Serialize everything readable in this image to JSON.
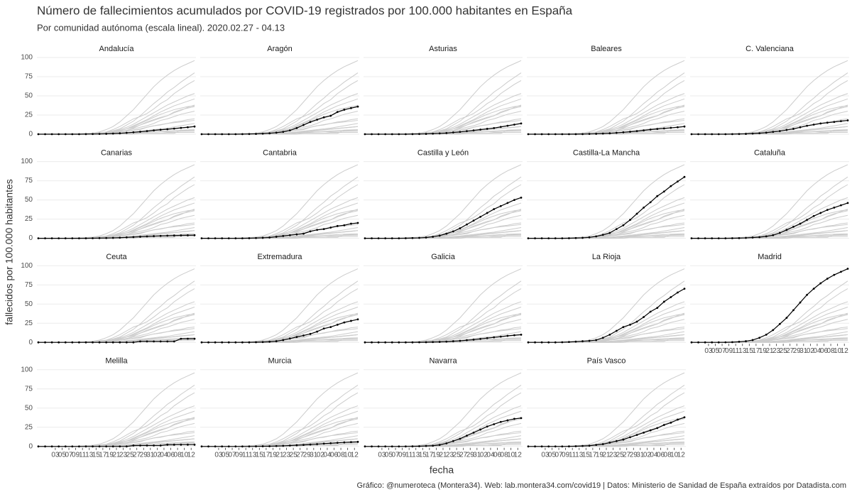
{
  "chart_data": {
    "type": "line",
    "title": "Número de fallecimientos acumulados por COVID-19 registrados por 100.000 habitantes en España",
    "subtitle": "Por comunidad autónoma (escala lineal). 2020.02.27 - 04.13",
    "xlabel": "fecha",
    "ylabel": "fallecidos por 100.000 habitantes",
    "caption": "Gráfico: @numeroteca (Montera34). Web: lab.montera34.com/covid19 | Datos: Ministerio de Sanidad de España extraídos por Datadista.com",
    "grid": true,
    "highlight_color": "#000000",
    "background_color": "#cccccc",
    "x": [
      "2020-02-27",
      "2020-02-29",
      "2020-03-02",
      "2020-03-04",
      "2020-03-06",
      "2020-03-08",
      "2020-03-10",
      "2020-03-12",
      "2020-03-14",
      "2020-03-16",
      "2020-03-18",
      "2020-03-20",
      "2020-03-22",
      "2020-03-24",
      "2020-03-26",
      "2020-03-28",
      "2020-03-30",
      "2020-04-01",
      "2020-04-03",
      "2020-04-05",
      "2020-04-07",
      "2020-04-09",
      "2020-04-11",
      "2020-04-13"
    ],
    "xlim": [
      "2020-02-27",
      "2020-04-13"
    ],
    "xticks": [
      {
        "value": "2020-03-03",
        "label": "03"
      },
      {
        "value": "2020-03-05",
        "label": "05"
      },
      {
        "value": "2020-03-07",
        "label": "07"
      },
      {
        "value": "2020-03-09",
        "label": "09"
      },
      {
        "value": "2020-03-11",
        "label": "11"
      },
      {
        "value": "2020-03-13",
        "label": "13"
      },
      {
        "value": "2020-03-15",
        "label": "15"
      },
      {
        "value": "2020-03-17",
        "label": "17"
      },
      {
        "value": "2020-03-19",
        "label": "19"
      },
      {
        "value": "2020-03-21",
        "label": "21"
      },
      {
        "value": "2020-03-23",
        "label": "23"
      },
      {
        "value": "2020-03-25",
        "label": "25"
      },
      {
        "value": "2020-03-27",
        "label": "27"
      },
      {
        "value": "2020-03-29",
        "label": "29"
      },
      {
        "value": "2020-03-31",
        "label": "31"
      },
      {
        "value": "2020-04-02",
        "label": "02"
      },
      {
        "value": "2020-04-04",
        "label": "04"
      },
      {
        "value": "2020-04-06",
        "label": "06"
      },
      {
        "value": "2020-04-08",
        "label": "08"
      },
      {
        "value": "2020-04-10",
        "label": "10"
      },
      {
        "value": "2020-04-12",
        "label": "12"
      }
    ],
    "ylim": [
      0,
      100
    ],
    "yticks": [
      0,
      25,
      50,
      75,
      100
    ],
    "series": [
      {
        "name": "Andalucía",
        "values": [
          0,
          0,
          0,
          0,
          0,
          0,
          0,
          0.1,
          0.2,
          0.3,
          0.5,
          0.8,
          1.2,
          1.8,
          2.5,
          3.2,
          4,
          5,
          5.8,
          6.5,
          7.3,
          8.2,
          9,
          10
        ]
      },
      {
        "name": "Aragón",
        "values": [
          0,
          0,
          0,
          0,
          0,
          0,
          0.1,
          0.2,
          0.4,
          0.7,
          1.2,
          2,
          3,
          5,
          8,
          12,
          16,
          19,
          22,
          24,
          29,
          32,
          34,
          36
        ]
      },
      {
        "name": "Asturias",
        "values": [
          0,
          0,
          0,
          0,
          0,
          0,
          0,
          0.1,
          0.2,
          0.4,
          0.7,
          1,
          1.5,
          2.3,
          3,
          4,
          5,
          6,
          7,
          8,
          9.5,
          11,
          12.5,
          14
        ]
      },
      {
        "name": "Baleares",
        "values": [
          0,
          0,
          0,
          0,
          0,
          0,
          0,
          0,
          0.1,
          0.3,
          0.5,
          0.8,
          1.2,
          1.8,
          2.5,
          3.2,
          4,
          5,
          6,
          6.8,
          7.5,
          8.3,
          9,
          10
        ]
      },
      {
        "name": "C. Valenciana",
        "values": [
          0,
          0,
          0,
          0,
          0,
          0,
          0.1,
          0.2,
          0.4,
          0.8,
          1.3,
          2,
          3,
          4,
          5.5,
          7,
          9,
          11,
          12.5,
          14,
          15,
          16,
          17,
          18
        ]
      },
      {
        "name": "Canarias",
        "values": [
          0,
          0,
          0,
          0,
          0,
          0,
          0,
          0,
          0.1,
          0.2,
          0.3,
          0.5,
          0.8,
          1.2,
          1.6,
          2,
          2.4,
          2.8,
          3.1,
          3.4,
          3.6,
          3.8,
          3.9,
          4
        ]
      },
      {
        "name": "Cantabria",
        "values": [
          0,
          0,
          0,
          0,
          0,
          0,
          0,
          0.1,
          0.3,
          0.6,
          1,
          2,
          3,
          4,
          5,
          6,
          9,
          11,
          12,
          14,
          16,
          17,
          19,
          20
        ]
      },
      {
        "name": "Castilla y León",
        "values": [
          0,
          0,
          0,
          0,
          0,
          0,
          0.1,
          0.3,
          0.5,
          1,
          2,
          3.5,
          6,
          9,
          13,
          18,
          23,
          28,
          33,
          38,
          42,
          46,
          50,
          53
        ]
      },
      {
        "name": "Castilla-La Mancha",
        "values": [
          0,
          0,
          0,
          0,
          0,
          0,
          0.1,
          0.3,
          0.6,
          1.2,
          2.5,
          4.5,
          7,
          12,
          17,
          24,
          32,
          40,
          47,
          55,
          61,
          68,
          74,
          80
        ]
      },
      {
        "name": "Cataluña",
        "values": [
          0,
          0,
          0,
          0,
          0,
          0,
          0.1,
          0.2,
          0.5,
          1,
          1.5,
          2.5,
          4,
          7,
          11,
          15,
          19,
          24,
          29,
          33,
          37,
          40,
          43,
          46
        ]
      },
      {
        "name": "Ceuta",
        "values": [
          0,
          0,
          0,
          0,
          0,
          0,
          0,
          0,
          0,
          0,
          0,
          0,
          0,
          0,
          0,
          1.2,
          1.2,
          1.2,
          1.2,
          1.2,
          1.2,
          4.7,
          4.7,
          4.7
        ]
      },
      {
        "name": "Extremadura",
        "values": [
          0,
          0,
          0,
          0,
          0,
          0,
          0,
          0,
          0.2,
          0.4,
          0.8,
          1.5,
          3,
          5,
          7,
          9,
          11,
          14,
          18,
          20,
          23,
          26,
          28,
          30
        ]
      },
      {
        "name": "Galicia",
        "values": [
          0,
          0,
          0,
          0,
          0,
          0,
          0,
          0,
          0.1,
          0.2,
          0.4,
          0.6,
          1,
          1.5,
          2,
          2.8,
          3.5,
          4.5,
          5.5,
          6.5,
          7.5,
          8.5,
          9.3,
          10
        ]
      },
      {
        "name": "La Rioja",
        "values": [
          0,
          0,
          0,
          0,
          0,
          0.2,
          0.5,
          1,
          1.5,
          2,
          3,
          6,
          10,
          15,
          20,
          23,
          27,
          33,
          40,
          45,
          53,
          59,
          65,
          70
        ]
      },
      {
        "name": "Madrid",
        "values": [
          0,
          0,
          0,
          0,
          0,
          0.1,
          0.3,
          0.8,
          1.5,
          3,
          6,
          10,
          16,
          24,
          32,
          42,
          52,
          62,
          70,
          77,
          83,
          88,
          92,
          96
        ]
      },
      {
        "name": "Melilla",
        "values": [
          0,
          0,
          0,
          0,
          0,
          0,
          0,
          0,
          0,
          0,
          0,
          0,
          0,
          0,
          1.2,
          1.2,
          1.2,
          1.2,
          1.2,
          2.3,
          2.3,
          2.3,
          2.3,
          2.3
        ]
      },
      {
        "name": "Murcia",
        "values": [
          0,
          0,
          0,
          0,
          0,
          0,
          0,
          0,
          0.1,
          0.2,
          0.3,
          0.5,
          0.8,
          1.2,
          1.6,
          2,
          2.5,
          3,
          3.6,
          4.2,
          4.8,
          5.3,
          5.7,
          6
        ]
      },
      {
        "name": "Navarra",
        "values": [
          0,
          0,
          0,
          0,
          0,
          0,
          0,
          0.1,
          0.3,
          0.6,
          1,
          2,
          4,
          7,
          10,
          14,
          18,
          22,
          26,
          29,
          32,
          34,
          36,
          37
        ]
      },
      {
        "name": "País Vasco",
        "values": [
          0,
          0,
          0,
          0,
          0,
          0,
          0.1,
          0.3,
          0.6,
          1,
          2,
          3,
          5,
          7,
          9,
          12,
          15,
          18,
          21,
          24,
          28,
          31,
          35,
          38
        ]
      }
    ]
  }
}
